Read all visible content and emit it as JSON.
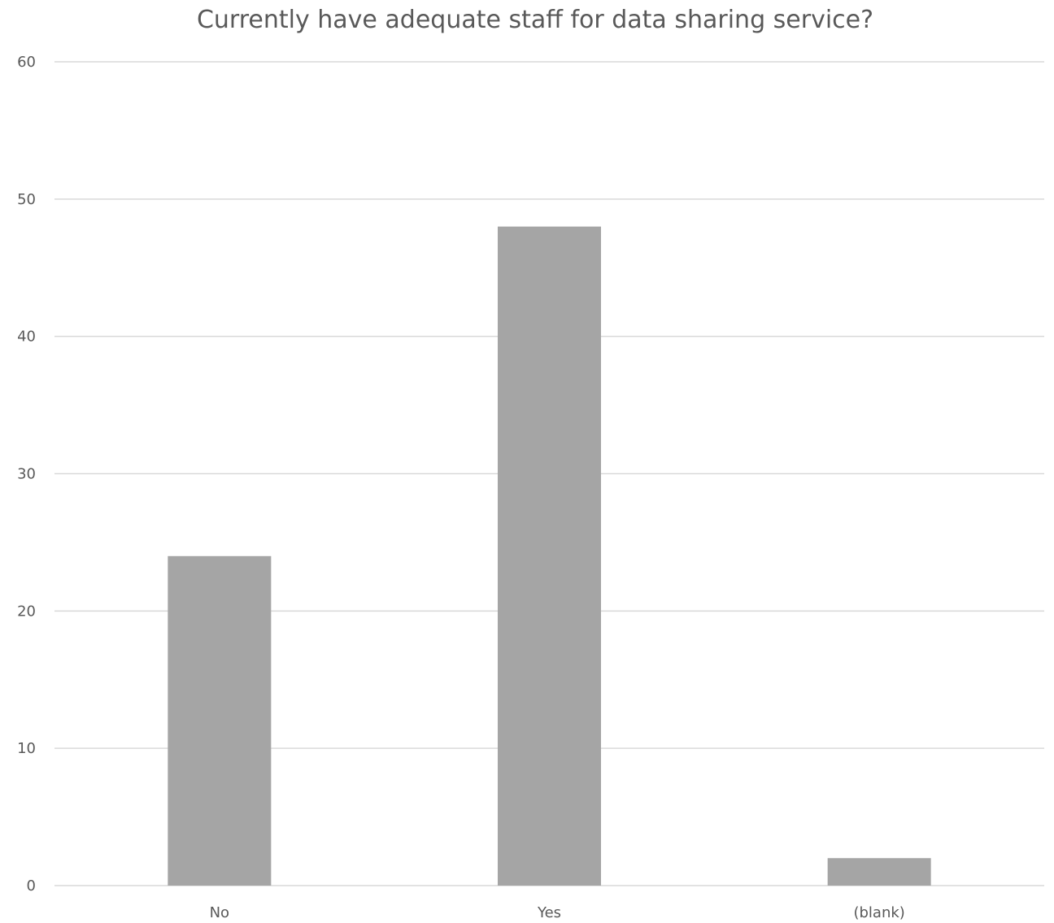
{
  "chart_data": {
    "type": "bar",
    "title": "Currently have adequate staff for data sharing service?",
    "categories": [
      "No",
      "Yes",
      "(blank)"
    ],
    "values": [
      24,
      48,
      2
    ],
    "xlabel": "",
    "ylabel": "",
    "ylim": [
      0,
      60
    ],
    "yticks": [
      "0",
      "10",
      "20",
      "30",
      "40",
      "50",
      "60"
    ],
    "grid": true,
    "legend": "none",
    "colors": {
      "bar": "#a5a5a5",
      "grid": "#d9d9d9",
      "text": "#595959"
    }
  }
}
